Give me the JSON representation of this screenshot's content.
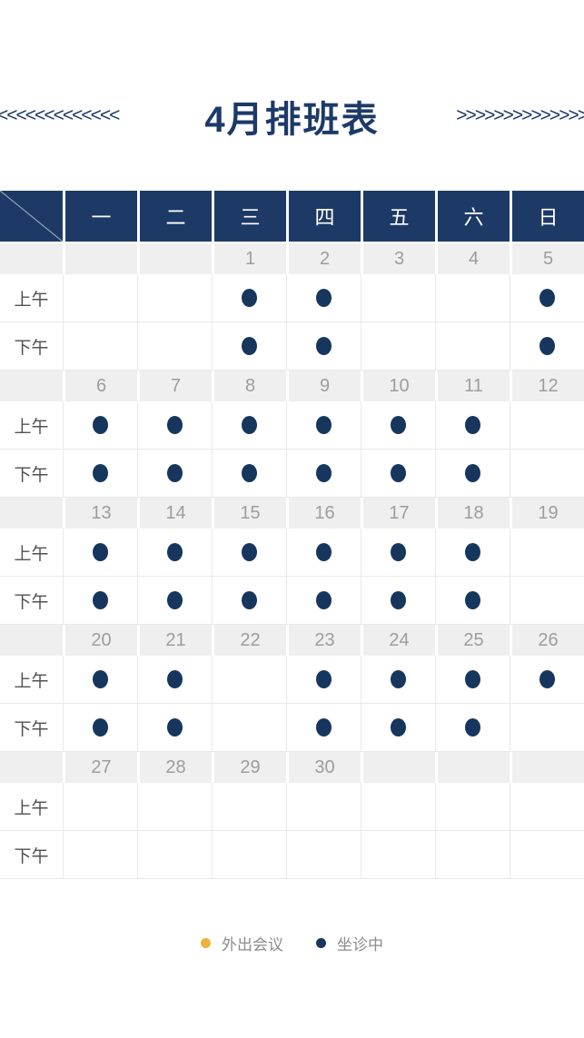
{
  "title": "4月排班表",
  "decor": {
    "left_chevrons": "<<<<<<<<<<<<<",
    "right_chevrons": ">>>>>>>>>>>>>>"
  },
  "schedule": {
    "day_headers": [
      "一",
      "二",
      "三",
      "四",
      "五",
      "六",
      "日"
    ],
    "slot_labels": {
      "morning": "上午",
      "afternoon": "下午"
    },
    "weeks": [
      {
        "dates": [
          "",
          "",
          "1",
          "2",
          "3",
          "4",
          "5"
        ],
        "morning": [
          0,
          0,
          1,
          1,
          0,
          0,
          1
        ],
        "afternoon": [
          0,
          0,
          1,
          1,
          0,
          0,
          1
        ]
      },
      {
        "dates": [
          "6",
          "7",
          "8",
          "9",
          "10",
          "11",
          "12"
        ],
        "morning": [
          1,
          1,
          1,
          1,
          1,
          1,
          0
        ],
        "afternoon": [
          1,
          1,
          1,
          1,
          1,
          1,
          0
        ]
      },
      {
        "dates": [
          "13",
          "14",
          "15",
          "16",
          "17",
          "18",
          "19"
        ],
        "morning": [
          1,
          1,
          1,
          1,
          1,
          1,
          0
        ],
        "afternoon": [
          1,
          1,
          1,
          1,
          1,
          1,
          0
        ]
      },
      {
        "dates": [
          "20",
          "21",
          "22",
          "23",
          "24",
          "25",
          "26"
        ],
        "morning": [
          1,
          1,
          0,
          1,
          1,
          1,
          1
        ],
        "afternoon": [
          1,
          1,
          0,
          1,
          1,
          1,
          0
        ]
      },
      {
        "dates": [
          "27",
          "28",
          "29",
          "30",
          "",
          "",
          ""
        ],
        "morning": [
          0,
          0,
          0,
          0,
          0,
          0,
          0
        ],
        "afternoon": [
          0,
          0,
          0,
          0,
          0,
          0,
          0
        ]
      }
    ]
  },
  "legend": [
    {
      "name": "out-meeting",
      "label": "外出会议",
      "color": "#efb23e"
    },
    {
      "name": "on-duty",
      "label": "坐诊中",
      "color": "#16365e"
    }
  ],
  "colors": {
    "navy_header": "#1d3a66",
    "navy_title": "#1c3a68",
    "dot": "#16365e",
    "date_row_bg": "#efefef",
    "date_text": "#9d9d9d",
    "slot_label_text": "#515151",
    "grid_line": "#e9e9e9",
    "legend_text": "#8c8c8c"
  }
}
